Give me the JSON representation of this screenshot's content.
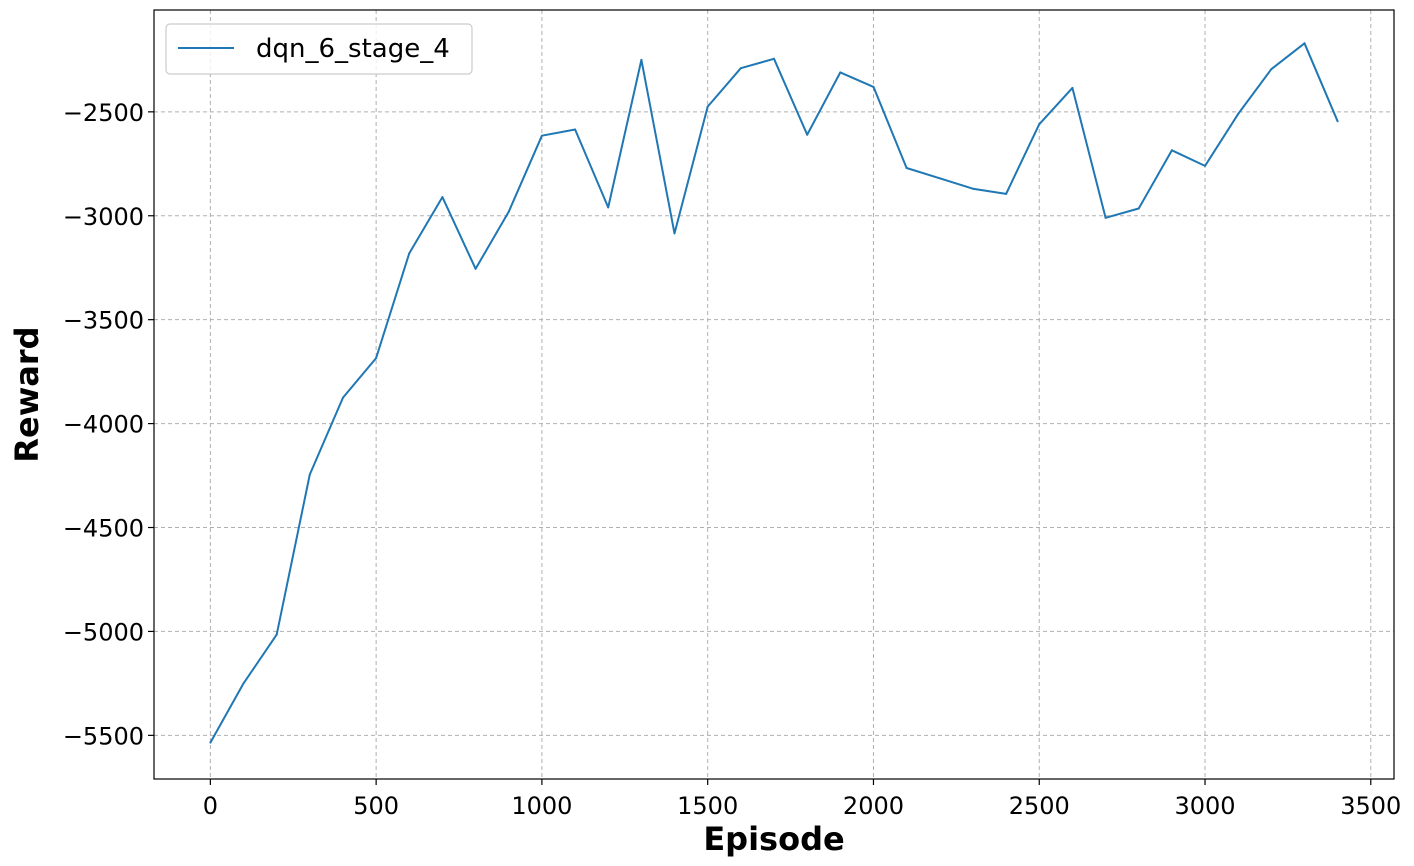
{
  "chart_data": {
    "type": "line",
    "xlabel": "Episode",
    "ylabel": "Reward",
    "xlim": [
      -170,
      3570
    ],
    "ylim": [
      -5710,
      -2010
    ],
    "xticks": [
      0,
      500,
      1000,
      1500,
      2000,
      2500,
      3000,
      3500
    ],
    "yticks": [
      -5500,
      -5000,
      -4500,
      -4000,
      -3500,
      -3000,
      -2500
    ],
    "xtick_labels": [
      "0",
      "500",
      "1000",
      "1500",
      "2000",
      "2500",
      "3000",
      "3500"
    ],
    "ytick_labels": [
      "−5500",
      "−5000",
      "−4500",
      "−4000",
      "−3500",
      "−3000",
      "−2500"
    ],
    "grid": true,
    "legend_position": "top-left",
    "series": [
      {
        "name": "dqn_6_stage_4",
        "color": "#1f77b4",
        "x": [
          0,
          100,
          200,
          300,
          400,
          500,
          600,
          700,
          800,
          900,
          1000,
          1100,
          1200,
          1300,
          1400,
          1500,
          1600,
          1700,
          1800,
          1900,
          2000,
          2100,
          2200,
          2300,
          2400,
          2500,
          2600,
          2700,
          2800,
          2900,
          3000,
          3100,
          3200,
          3300,
          3400
        ],
        "y": [
          -5535,
          -5250,
          -5015,
          -4245,
          -3875,
          -3685,
          -3180,
          -2910,
          -3255,
          -2980,
          -2615,
          -2585,
          -2960,
          -2250,
          -3085,
          -2475,
          -2290,
          -2245,
          -2610,
          -2310,
          -2380,
          -2770,
          -2820,
          -2870,
          -2895,
          -2560,
          -2385,
          -3010,
          -2965,
          -2685,
          -2760,
          -2510,
          -2295,
          -2170,
          -2545
        ]
      }
    ]
  }
}
